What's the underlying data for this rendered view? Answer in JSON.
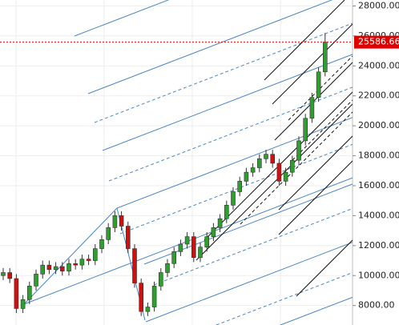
{
  "chart_data": {
    "type": "candlestick",
    "open": [
      10000,
      10200,
      9800,
      7800,
      8400,
      9300,
      10100,
      10700,
      10400,
      10600,
      10300,
      10800,
      10700,
      11100,
      11000,
      11800,
      12400,
      13200,
      14000,
      13300,
      11800,
      9500,
      7600,
      7900,
      9300,
      10200,
      10800,
      11600,
      12100,
      12600,
      11200,
      11900,
      12600,
      13200,
      13800,
      14700,
      15600,
      16300,
      16900,
      17200,
      17800,
      18100,
      17500,
      16300,
      16900,
      17700,
      19000,
      20500,
      21900,
      23600
    ],
    "high": [
      10500,
      10500,
      10100,
      8700,
      9600,
      10400,
      11000,
      11000,
      10900,
      10900,
      11100,
      11100,
      11400,
      11400,
      12100,
      12700,
      13500,
      14300,
      14300,
      13600,
      12100,
      9800,
      8200,
      9600,
      10500,
      11100,
      11900,
      12400,
      12900,
      12900,
      12200,
      12900,
      13500,
      14100,
      15000,
      15900,
      16600,
      17200,
      17500,
      18100,
      18400,
      18400,
      17800,
      17200,
      18000,
      19300,
      20800,
      22200,
      23900,
      26200
    ],
    "low": [
      9700,
      9500,
      7500,
      7500,
      8100,
      9000,
      9800,
      10100,
      10100,
      10000,
      10000,
      10400,
      10400,
      10700,
      10700,
      11500,
      12100,
      12900,
      13000,
      11500,
      9200,
      7300,
      7300,
      7600,
      9000,
      9900,
      10500,
      11300,
      11800,
      10900,
      10900,
      11600,
      12300,
      12900,
      13500,
      14400,
      15300,
      16000,
      16600,
      16900,
      17500,
      17200,
      16000,
      16000,
      16600,
      17400,
      18700,
      20200,
      21600,
      23300
    ],
    "close": [
      10200,
      9800,
      7800,
      8400,
      9300,
      10100,
      10700,
      10400,
      10600,
      10300,
      10800,
      10700,
      11100,
      11000,
      11800,
      12400,
      13200,
      14000,
      13300,
      11800,
      9500,
      7600,
      7900,
      9300,
      10200,
      10800,
      11600,
      12100,
      12600,
      11200,
      11900,
      12600,
      13200,
      13800,
      14700,
      15600,
      16300,
      16900,
      17200,
      17800,
      18100,
      17500,
      16300,
      16900,
      17700,
      19000,
      20500,
      21900,
      23600,
      25586.66
    ],
    "up_color": "#2e9e2e",
    "down_color": "#cc1111",
    "ylim": [
      6700,
      28400
    ],
    "yticks": [
      {
        "value": 8000,
        "label": "8000.00"
      },
      {
        "value": 10000,
        "label": "10000.00"
      },
      {
        "value": 12000,
        "label": "12000.00"
      },
      {
        "value": 14000,
        "label": "14000.00"
      },
      {
        "value": 16000,
        "label": "16000.00"
      },
      {
        "value": 18000,
        "label": "18000.00"
      },
      {
        "value": 20000,
        "label": "20000.00"
      },
      {
        "value": 22000,
        "label": "22000.00"
      },
      {
        "value": 24000,
        "label": "24000.00"
      },
      {
        "value": 26000,
        "label": "26000.00"
      },
      {
        "value": 28000,
        "label": "28000.00"
      }
    ],
    "last_price": {
      "value": 25586.66,
      "label": "25586.66",
      "color": "#e00000"
    },
    "grid": true
  }
}
